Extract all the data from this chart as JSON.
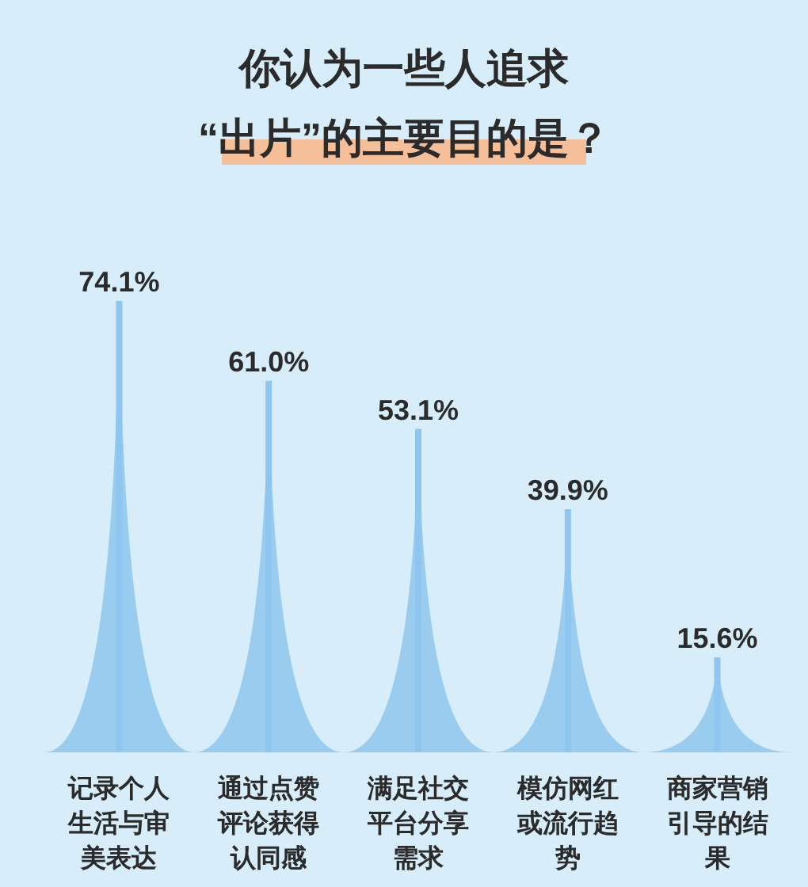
{
  "chart_data": {
    "type": "bar",
    "title": "你认为一些人追求\n“出片”的主要目的是？",
    "categories": [
      "记录个人生活与审美表达",
      "通过点赞评论获得认同感",
      "满足社交平台分享需求",
      "模仿网红或流行趋势",
      "商家营销引导的结果"
    ],
    "values": [
      74.1,
      61.0,
      53.1,
      39.9,
      15.6
    ],
    "value_labels": [
      "74.1%",
      "61.0%",
      "53.1%",
      "39.9%",
      "15.6%"
    ],
    "color": "#8fc6ef"
  }
}
